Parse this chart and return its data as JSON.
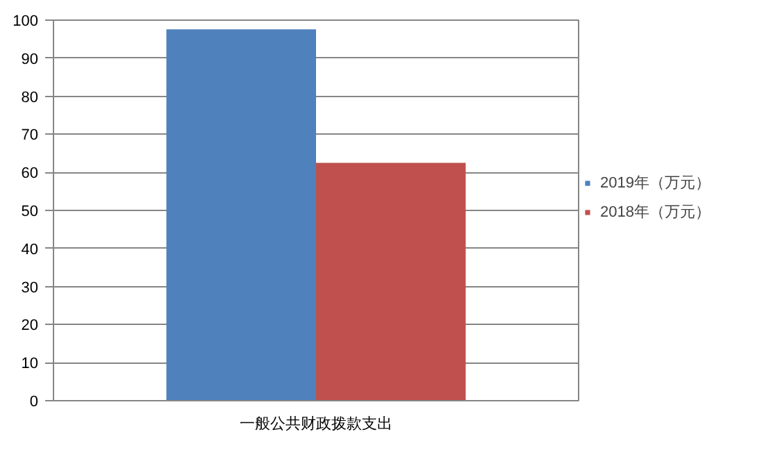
{
  "chart_data": {
    "type": "bar",
    "categories": [
      "一般公共财政拨款支出"
    ],
    "series": [
      {
        "name": "2019年（万元）",
        "color": "#4f81bd",
        "values": [
          97.6
        ]
      },
      {
        "name": "2018年（万元）",
        "color": "#c0504d",
        "values": [
          62.5
        ]
      }
    ],
    "ylim": [
      0,
      100
    ],
    "yticks": [
      0,
      10,
      20,
      30,
      40,
      50,
      60,
      70,
      80,
      90,
      100
    ],
    "grid": "y",
    "legend": "right"
  }
}
